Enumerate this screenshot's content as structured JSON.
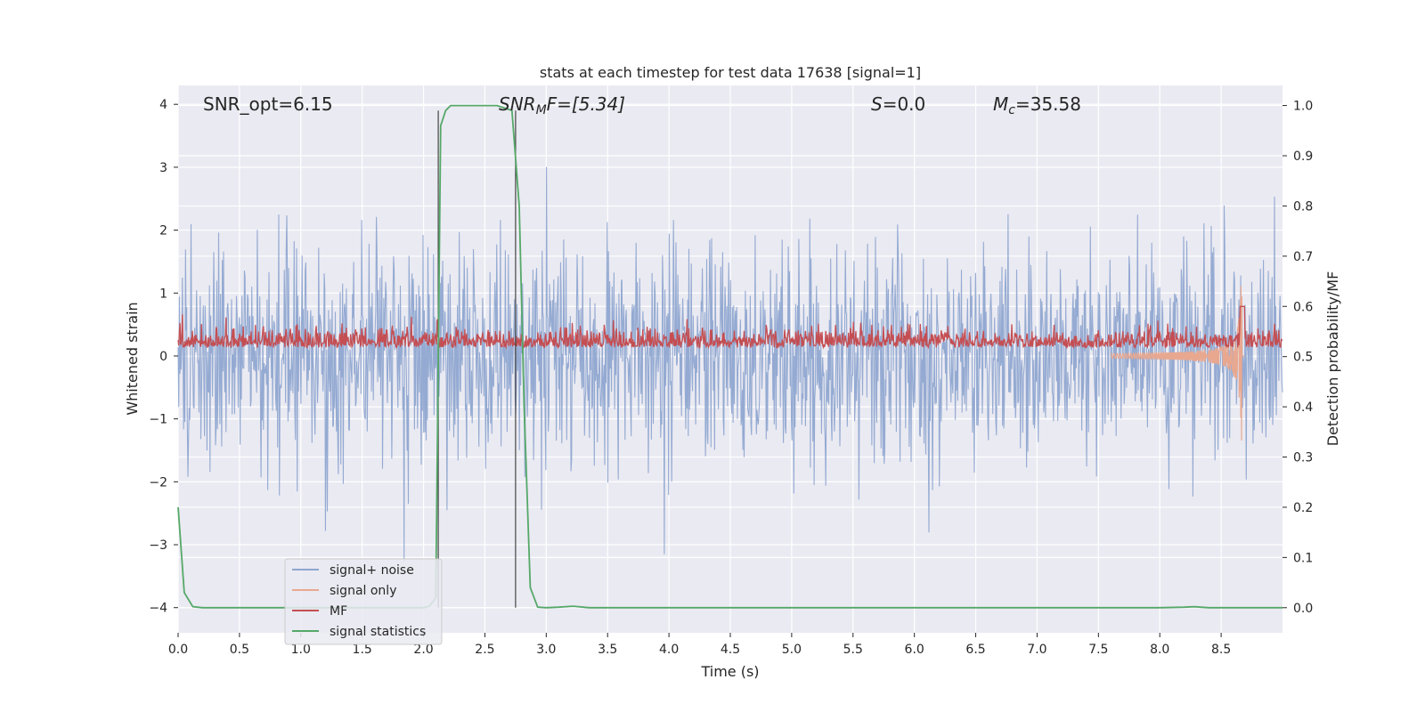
{
  "chart_data": {
    "type": "line",
    "title": "stats at each timestep for test data 17638 [signal=1]",
    "xlabel": "Time (s)",
    "ylabel": "Whitened strain",
    "ylabel_right": "Detection probability/MF",
    "xlim": [
      0,
      9.0
    ],
    "ylim": [
      -4.4,
      4.3
    ],
    "ylim_right": [
      -0.05,
      1.04
    ],
    "x_ticks": [
      0.0,
      0.5,
      1.0,
      1.5,
      2.0,
      2.5,
      3.0,
      3.5,
      4.0,
      4.5,
      5.0,
      5.5,
      6.0,
      6.5,
      7.0,
      7.5,
      8.0,
      8.5
    ],
    "x_tick_labels": [
      "0.0",
      "0.5",
      "1.0",
      "1.5",
      "2.0",
      "2.5",
      "3.0",
      "3.5",
      "4.0",
      "4.5",
      "5.0",
      "5.5",
      "6.0",
      "6.5",
      "7.0",
      "7.5",
      "8.0",
      "8.5"
    ],
    "y_ticks": [
      4,
      3,
      2,
      1,
      0,
      -1,
      -2,
      -3,
      -4
    ],
    "y_tick_labels": [
      "4",
      "3",
      "2",
      "1",
      "0",
      "−1",
      "−2",
      "−3",
      "−4"
    ],
    "y_right_ticks": [
      1.0,
      0.9,
      0.8,
      0.7,
      0.6,
      0.5,
      0.4,
      0.3,
      0.2,
      0.1,
      0.0
    ],
    "y_right_tick_labels": [
      "1.0",
      "0.9",
      "0.8",
      "0.7",
      "0.6",
      "0.5",
      "0.4",
      "0.3",
      "0.2",
      "0.1",
      "0.0"
    ],
    "grid": true,
    "legend_position": "lower-left",
    "annotations": {
      "snr_opt": "SNR_opt=6.15",
      "snr_mf_main": "SNR",
      "snr_mf_sub": "M",
      "snr_mf_rest": "F=[5.34]",
      "s_main": "S",
      "s_rest": "=0.0",
      "mc_main": "M",
      "mc_sub": "c",
      "mc_rest": "=35.58"
    },
    "vertical_lines": [
      2.12,
      2.75
    ],
    "series": [
      {
        "name": "signal+ noise",
        "color": "#8fa6d0",
        "axis": "left",
        "noise_sigma": 0.85,
        "x_range": [
          0,
          9.0
        ]
      },
      {
        "name": "signal only",
        "color": "#e8a890",
        "axis": "left",
        "chirp_time": 8.67,
        "chirp_peak": 1.4
      },
      {
        "name": "MF",
        "color": "#c44e52",
        "axis": "right",
        "baseline": 0.53,
        "peak": 0.6,
        "peak_time": 8.67
      },
      {
        "name": "signal statistics",
        "color": "#55a868",
        "axis": "right",
        "x": [
          0.0,
          0.05,
          0.12,
          0.2,
          0.5,
          1.0,
          1.5,
          2.0,
          2.05,
          2.1,
          2.14,
          2.18,
          2.22,
          2.28,
          2.4,
          2.6,
          2.72,
          2.78,
          2.82,
          2.87,
          2.93,
          3.0,
          3.1,
          3.22,
          3.35,
          3.6,
          4.0,
          5.0,
          6.0,
          7.0,
          7.5,
          8.0,
          8.2,
          8.28,
          8.4,
          8.6,
          9.0
        ],
        "y": [
          0.2,
          0.03,
          0.002,
          0.0,
          0.0,
          0.0,
          0.0,
          0.0,
          0.003,
          0.02,
          0.96,
          0.99,
          1.0,
          1.0,
          1.0,
          1.0,
          0.99,
          0.8,
          0.4,
          0.04,
          0.001,
          0.0,
          0.001,
          0.003,
          0.0,
          0.0,
          0.0,
          0.0,
          0.0,
          0.0,
          0.0,
          0.0,
          0.001,
          0.002,
          0.0,
          0.0,
          0.0
        ]
      }
    ]
  }
}
